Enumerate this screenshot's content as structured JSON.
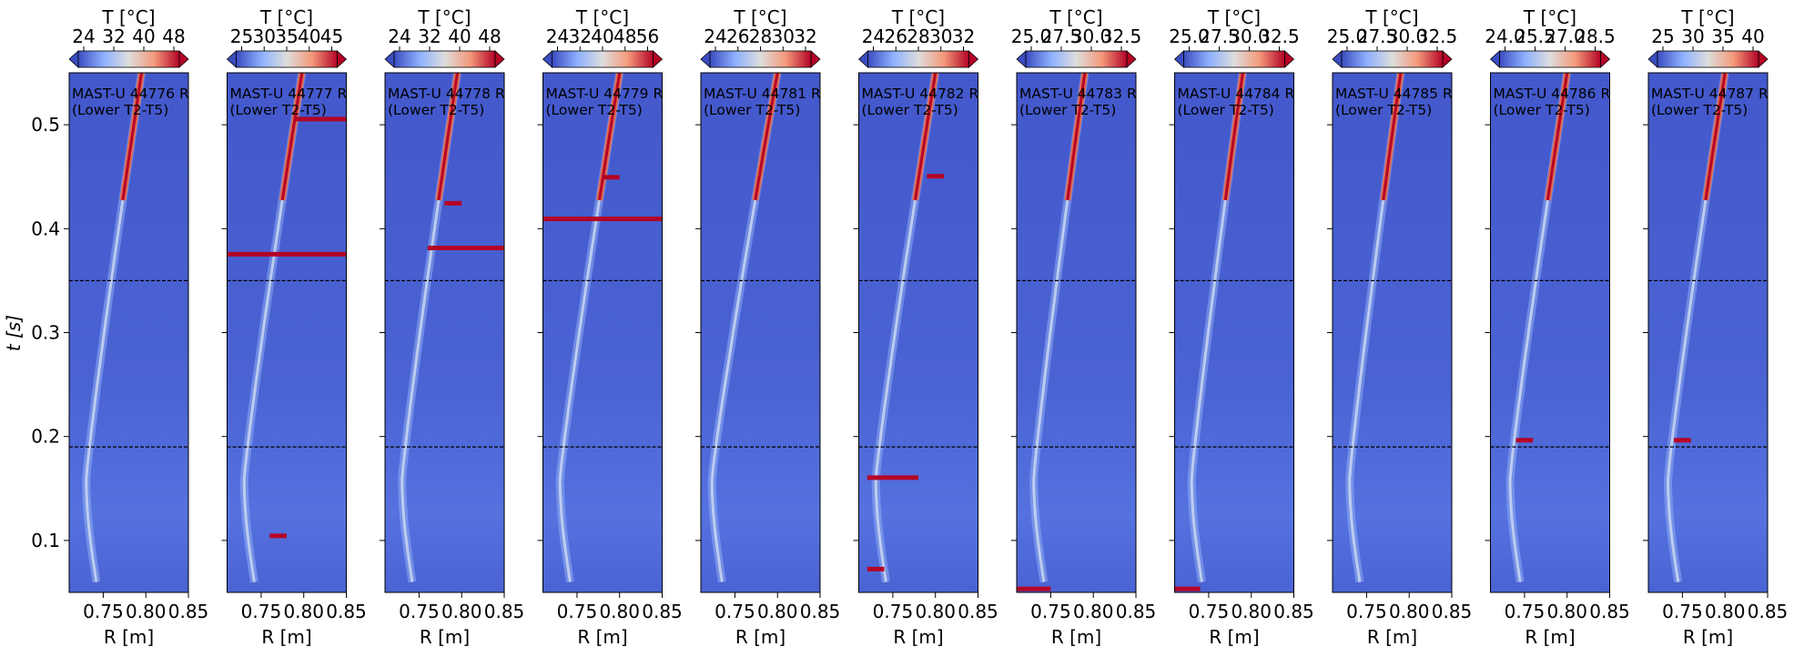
{
  "figure": {
    "ylabel": "t [s]",
    "xlabel": "R [m]",
    "cbar_label": "T [°C]",
    "y_ticks": [
      "0.1",
      "0.2",
      "0.3",
      "0.4",
      "0.5"
    ],
    "x_ticks": [
      "0.75",
      "0.80",
      "0.85"
    ],
    "colors": {
      "low": "#3b4cc0",
      "mid": "#dddddd",
      "high": "#b40426",
      "dashed": "#000000"
    }
  },
  "chart_data": [
    {
      "type": "heatmap",
      "title": "MAST-U 44776 R (Lower T2-T5)",
      "line1": "MAST-U 44776 R",
      "line2": "(Lower T2-T5)",
      "cbar_ticks": [
        "24",
        "32",
        "40",
        "48"
      ],
      "xlim": [
        0.71,
        0.85
      ],
      "ylim": [
        0.05,
        0.55
      ],
      "dashed_lines_t": [
        0.35,
        0.19
      ],
      "strike_R_start": 0.742,
      "strike_R_end": 0.795,
      "hot_bands": []
    },
    {
      "type": "heatmap",
      "title": "MAST-U 44777 R (Lower T2-T5)",
      "line1": "MAST-U 44777 R",
      "line2": "(Lower T2-T5)",
      "cbar_ticks": [
        "25",
        "30",
        "35",
        "40",
        "45"
      ],
      "xlim": [
        0.71,
        0.85
      ],
      "ylim": [
        0.05,
        0.55
      ],
      "dashed_lines_t": [
        0.35,
        0.19
      ],
      "strike_R_start": 0.742,
      "strike_R_end": 0.798,
      "hot_bands": [
        {
          "t": 0.375,
          "r0": 0.71,
          "r1": 0.85
        },
        {
          "t": 0.104,
          "r0": 0.76,
          "r1": 0.78
        },
        {
          "t": 0.505,
          "r0": 0.79,
          "r1": 0.85
        }
      ]
    },
    {
      "type": "heatmap",
      "title": "MAST-U 44778 R (Lower T2-T5)",
      "line1": "MAST-U 44778 R",
      "line2": "(Lower T2-T5)",
      "cbar_ticks": [
        "24",
        "32",
        "40",
        "48"
      ],
      "xlim": [
        0.71,
        0.85
      ],
      "ylim": [
        0.05,
        0.55
      ],
      "dashed_lines_t": [
        0.35,
        0.19
      ],
      "strike_R_start": 0.742,
      "strike_R_end": 0.795,
      "hot_bands": [
        {
          "t": 0.381,
          "r0": 0.76,
          "r1": 0.85
        },
        {
          "t": 0.424,
          "r0": 0.78,
          "r1": 0.8
        }
      ]
    },
    {
      "type": "heatmap",
      "title": "MAST-U 44779 R (Lower T2-T5)",
      "line1": "MAST-U 44779 R",
      "line2": "(Lower T2-T5)",
      "cbar_ticks": [
        "24",
        "32",
        "40",
        "48",
        "56"
      ],
      "xlim": [
        0.71,
        0.85
      ],
      "ylim": [
        0.05,
        0.55
      ],
      "dashed_lines_t": [
        0.35,
        0.19
      ],
      "strike_R_start": 0.742,
      "strike_R_end": 0.8,
      "hot_bands": [
        {
          "t": 0.409,
          "r0": 0.71,
          "r1": 0.85
        },
        {
          "t": 0.449,
          "r0": 0.78,
          "r1": 0.8
        }
      ]
    },
    {
      "type": "heatmap",
      "title": "MAST-U 44781 R (Lower T2-T5)",
      "line1": "MAST-U 44781 R",
      "line2": "(Lower T2-T5)",
      "cbar_ticks": [
        "24",
        "26",
        "28",
        "30",
        "32"
      ],
      "xlim": [
        0.71,
        0.85
      ],
      "ylim": [
        0.05,
        0.55
      ],
      "dashed_lines_t": [
        0.35,
        0.19
      ],
      "strike_R_start": 0.735,
      "strike_R_end": 0.8,
      "hot_bands": []
    },
    {
      "type": "heatmap",
      "title": "MAST-U 44782 R (Lower T2-T5)",
      "line1": "MAST-U 44782 R",
      "line2": "(Lower T2-T5)",
      "cbar_ticks": [
        "24",
        "26",
        "28",
        "30",
        "32"
      ],
      "xlim": [
        0.71,
        0.85
      ],
      "ylim": [
        0.05,
        0.55
      ],
      "dashed_lines_t": [
        0.35,
        0.19
      ],
      "strike_R_start": 0.742,
      "strike_R_end": 0.8,
      "hot_bands": [
        {
          "t": 0.45,
          "r0": 0.79,
          "r1": 0.81
        },
        {
          "t": 0.16,
          "r0": 0.72,
          "r1": 0.78
        },
        {
          "t": 0.072,
          "r0": 0.72,
          "r1": 0.74
        }
      ]
    },
    {
      "type": "heatmap",
      "title": "MAST-U 44783 R (Lower T2-T5)",
      "line1": "MAST-U 44783 R",
      "line2": "(Lower T2-T5)",
      "cbar_ticks": [
        "25.0",
        "27.5",
        "30.0",
        "32.5"
      ],
      "xlim": [
        0.71,
        0.85
      ],
      "ylim": [
        0.05,
        0.55
      ],
      "dashed_lines_t": [
        0.35,
        0.19
      ],
      "strike_R_start": 0.742,
      "strike_R_end": 0.79,
      "hot_bands": [
        {
          "t": 0.053,
          "r0": 0.71,
          "r1": 0.75
        }
      ]
    },
    {
      "type": "heatmap",
      "title": "MAST-U 44784 R (Lower T2-T5)",
      "line1": "MAST-U 44784 R",
      "line2": "(Lower T2-T5)",
      "cbar_ticks": [
        "25.0",
        "27.5",
        "30.0",
        "32.5"
      ],
      "xlim": [
        0.71,
        0.85
      ],
      "ylim": [
        0.05,
        0.55
      ],
      "dashed_lines_t": [
        0.35,
        0.19
      ],
      "strike_R_start": 0.742,
      "strike_R_end": 0.79,
      "hot_bands": [
        {
          "t": 0.053,
          "r0": 0.71,
          "r1": 0.74
        }
      ]
    },
    {
      "type": "heatmap",
      "title": "MAST-U 44785 R (Lower T2-T5)",
      "line1": "MAST-U 44785 R",
      "line2": "(Lower T2-T5)",
      "cbar_ticks": [
        "25.0",
        "27.5",
        "30.0",
        "32.5"
      ],
      "xlim": [
        0.71,
        0.85
      ],
      "ylim": [
        0.05,
        0.55
      ],
      "dashed_lines_t": [
        0.35,
        0.19
      ],
      "strike_R_start": 0.742,
      "strike_R_end": 0.79,
      "hot_bands": []
    },
    {
      "type": "heatmap",
      "title": "MAST-U 44786 R (Lower T2-T5)",
      "line1": "MAST-U 44786 R",
      "line2": "(Lower T2-T5)",
      "cbar_ticks": [
        "24.0",
        "25.5",
        "27.0",
        "28.5"
      ],
      "xlim": [
        0.71,
        0.85
      ],
      "ylim": [
        0.05,
        0.55
      ],
      "dashed_lines_t": [
        0.35,
        0.19
      ],
      "strike_R_start": 0.745,
      "strike_R_end": 0.8,
      "hot_bands": [
        {
          "t": 0.196,
          "r0": 0.74,
          "r1": 0.76
        }
      ]
    },
    {
      "type": "heatmap",
      "title": "MAST-U 44787 R (Lower T2-T5)",
      "line1": "MAST-U 44787 R",
      "line2": "(Lower T2-T5)",
      "cbar_ticks": [
        "25",
        "30",
        "35",
        "40"
      ],
      "xlim": [
        0.71,
        0.85
      ],
      "ylim": [
        0.05,
        0.55
      ],
      "dashed_lines_t": [
        0.35,
        0.19
      ],
      "strike_R_start": 0.745,
      "strike_R_end": 0.8,
      "hot_bands": [
        {
          "t": 0.196,
          "r0": 0.74,
          "r1": 0.76
        }
      ]
    }
  ]
}
